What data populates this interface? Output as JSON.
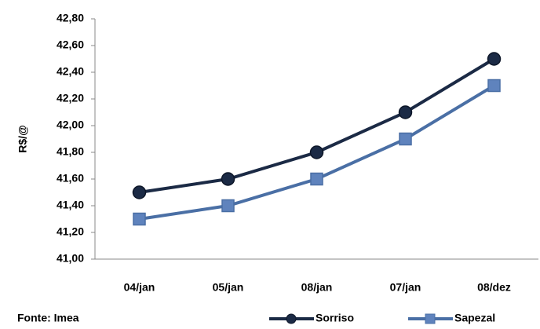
{
  "chart_data": {
    "type": "line",
    "ylabel": "R$/@",
    "source": "Fonte: Imea",
    "categories": [
      "04/jan",
      "05/jan",
      "08/jan",
      "07/jan",
      "08/dez"
    ],
    "series": [
      {
        "name": "Sorriso",
        "color": "#1b2a45",
        "marker": "circle",
        "values": [
          41.5,
          41.6,
          41.8,
          42.1,
          42.5
        ]
      },
      {
        "name": "Sapezal",
        "color": "#4a6fa5",
        "marker": "square",
        "values": [
          41.3,
          41.4,
          41.6,
          41.9,
          42.3
        ]
      }
    ],
    "ylim": [
      41,
      42.8
    ],
    "yticks": [
      {
        "value": 41,
        "label": "41,00"
      },
      {
        "value": 41.2,
        "label": "41,20"
      },
      {
        "value": 41.4,
        "label": "41,40"
      },
      {
        "value": 41.6,
        "label": "41,60"
      },
      {
        "value": 41.8,
        "label": "41,80"
      },
      {
        "value": 42,
        "label": "42,00"
      },
      {
        "value": 42.2,
        "label": "42,20"
      },
      {
        "value": 42.4,
        "label": "42,40"
      },
      {
        "value": 42.6,
        "label": "42,60"
      },
      {
        "value": 42.8,
        "label": "42,80"
      }
    ]
  }
}
